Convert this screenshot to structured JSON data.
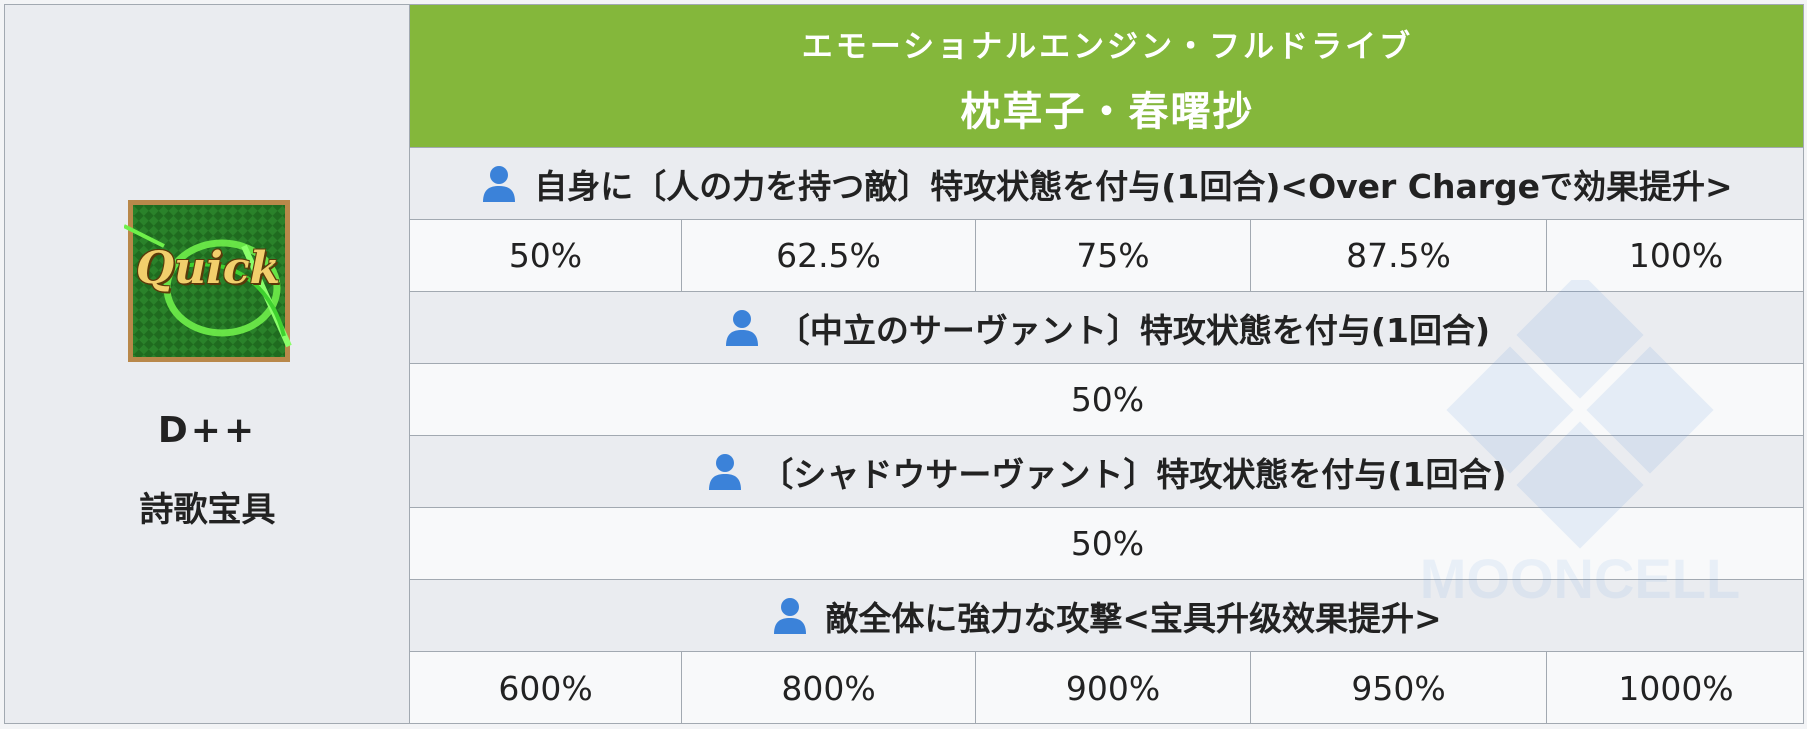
{
  "card": {
    "label": "Quick",
    "colors": {
      "green": "#2e8b2e",
      "gold": "#d8a94a"
    }
  },
  "rank": "D++",
  "np_type": "詩歌宝具",
  "header": {
    "ruby": "エモーショナルエンジン・フルドライブ",
    "name": "枕草子・春曙抄",
    "color": "#84b73b"
  },
  "effects": [
    {
      "icon": "person-icon",
      "text": "自身に〔人の力を持つ敵〕特攻状態を付与(1回合)<Over Chargeで効果提升>",
      "values": [
        "50%",
        "62.5%",
        "75%",
        "87.5%",
        "100%"
      ]
    },
    {
      "icon": "person-icon",
      "text": "〔中立のサーヴァント〕特攻状態を付与(1回合)",
      "values": [
        "50%"
      ]
    },
    {
      "icon": "person-icon",
      "text": "〔シャドウサーヴァント〕特攻状態を付与(1回合)",
      "values": [
        "50%"
      ]
    },
    {
      "icon": "person-icon",
      "text": "敵全体に強力な攻撃<宝具升级效果提升>",
      "values": [
        "600%",
        "800%",
        "900%",
        "950%",
        "1000%"
      ]
    }
  ],
  "watermark": "MOONCELL",
  "icon_color": "#3b82d9"
}
